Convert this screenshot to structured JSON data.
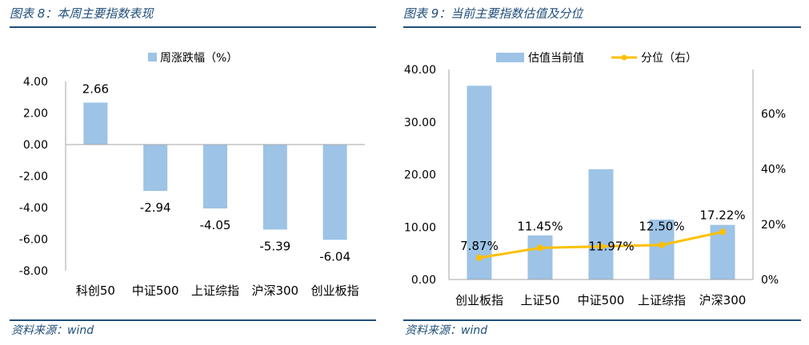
{
  "left": {
    "figure_title": "图表 8：本周主要指数表现",
    "source": "资料来源：wind",
    "chart_data": {
      "type": "bar",
      "legend": "周涨跌幅（%）",
      "legend_position": "top-center",
      "categories": [
        "科创50",
        "中证500",
        "上证综指",
        "沪深300",
        "创业板指"
      ],
      "values": [
        2.66,
        -2.94,
        -4.05,
        -5.39,
        -6.04
      ],
      "value_labels": [
        "2.66",
        "-2.94",
        "-4.05",
        "-5.39",
        "-6.04"
      ],
      "ylim": [
        -8,
        4
      ],
      "yticks": [
        "4.00",
        "2.00",
        "0.00",
        "-2.00",
        "-4.00",
        "-6.00",
        "-8.00"
      ],
      "grid": false,
      "bar_color": "#9dc3e6"
    }
  },
  "right": {
    "figure_title": "图表 9：当前主要指数估值及分位",
    "source": "资料来源：wind",
    "chart_data": {
      "type": "bar",
      "categories": [
        "创业板指",
        "上证50",
        "中证500",
        "上证综指",
        "沪深300"
      ],
      "series": [
        {
          "name": "估值当前值",
          "type": "bar",
          "axis": "left",
          "values": [
            36.9,
            8.4,
            21.0,
            11.4,
            10.4
          ],
          "color": "#9dc3e6"
        },
        {
          "name": "分位（右）",
          "type": "line",
          "axis": "right",
          "values": [
            7.87,
            11.45,
            11.97,
            12.5,
            17.22
          ],
          "labels": [
            "7.87%",
            "11.45%",
            "11.97%",
            "12.50%",
            "17.22%"
          ],
          "color": "#ffc000"
        }
      ],
      "ylim_left": [
        0,
        40
      ],
      "yticks_left": [
        "40.00",
        "30.00",
        "20.00",
        "10.00",
        "0.00"
      ],
      "ylim_right": [
        0,
        76
      ],
      "yticks_right": [
        "60%",
        "40%",
        "20%",
        "0%"
      ],
      "yticks_right_values": [
        60,
        40,
        20,
        0
      ],
      "legend_position": "top-center",
      "grid": false
    }
  }
}
